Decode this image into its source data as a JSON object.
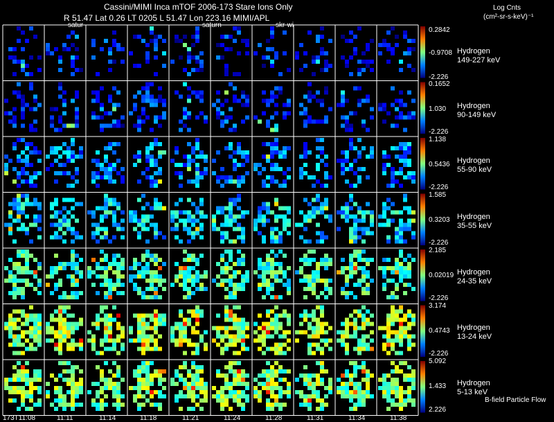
{
  "header": {
    "title": "Cassini/MIMI Inca mTOF  2006-173   Stare    Ions Only",
    "ephemeris": "R        51.47 Lat 0.26 LT 0205 L         51.47 Lon        223.16  MIMI/APL",
    "units_title": "Log Cnts",
    "units": "(cm²-sr-s-keV)⁻¹"
  },
  "frame_labels": [
    "satur",
    "saturn",
    "skr-wi"
  ],
  "time_labels": [
    "173T11:08",
    "11:11",
    "11:14",
    "11:18",
    "11:21",
    "11:24",
    "11:28",
    "11:31",
    "11:34",
    "11:38"
  ],
  "footer_note": "B-field Particle Flow",
  "colors": {
    "background": "#000000",
    "grid_lines": "#ffffff"
  },
  "chart_data": {
    "type": "heatmap",
    "title": "Cassini/MIMI Inca mTOF  2006-173   Stare    Ions Only",
    "colorbar_label": "Log Cnts (cm²-sr-s-keV)⁻¹",
    "columns": 10,
    "rows": [
      {
        "species": "Hydrogen",
        "energy": "149-227 keV",
        "cmax": "0.2842",
        "cmid": "-0.9708",
        "cmin": "-2.226",
        "level": 0.15,
        "density": 0.3
      },
      {
        "species": "Hydrogen",
        "energy": "90-149 keV",
        "cmax": "0.1652",
        "cmid": "1.030",
        "cmin": "-2.226",
        "level": 0.18,
        "density": 0.38
      },
      {
        "species": "Hydrogen",
        "energy": "55-90 keV",
        "cmax": "1.138",
        "cmid": "0.5436",
        "cmin": "-2.226",
        "level": 0.27,
        "density": 0.45
      },
      {
        "species": "Hydrogen",
        "energy": "35-55 keV",
        "cmax": "1.585",
        "cmid": "0.3203",
        "cmin": "-2.226",
        "level": 0.35,
        "density": 0.52
      },
      {
        "species": "Hydrogen",
        "energy": "24-35 keV",
        "cmax": "2.185",
        "cmid": "0.02019",
        "cmin": "-2.226",
        "level": 0.45,
        "density": 0.6
      },
      {
        "species": "Hydrogen",
        "energy": "13-24 keV",
        "cmax": "3.174",
        "cmid": "0.4743",
        "cmin": "-2.226",
        "level": 0.55,
        "density": 0.66
      },
      {
        "species": "Hydrogen",
        "energy": "5-13 keV",
        "cmax": "5.092",
        "cmid": "1.433",
        "cmin": "2.226",
        "level": 0.52,
        "density": 0.68
      }
    ]
  }
}
